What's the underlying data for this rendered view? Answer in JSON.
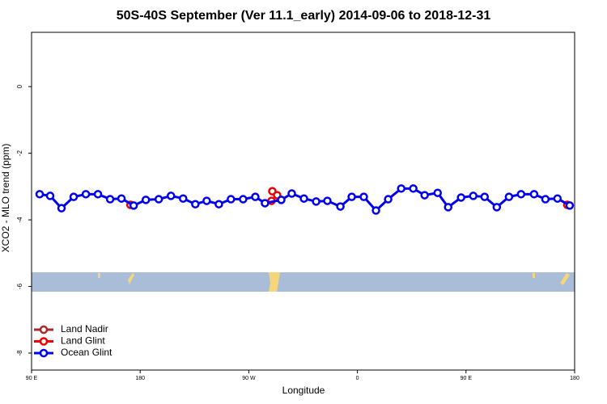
{
  "chart_data": {
    "type": "line",
    "title": "50S-40S September (Ver 11.1_early)   2014-09-06 to 2018-12-31",
    "xlabel": "Longitude",
    "ylabel": "XCO2 - MLO trend (ppm)",
    "xlim": [
      90,
      540
    ],
    "xticks": [
      {
        "value": 90,
        "label": "90 E"
      },
      180,
      {
        "value": 270,
        "label": "90 W"
      },
      {
        "value": 360,
        "label": "0"
      },
      {
        "value": 450,
        "label": "90 E"
      },
      {
        "value": 540,
        "label": "180"
      }
    ],
    "ylim": [
      -8.51,
      1.63
    ],
    "yticks": [
      -8,
      -6,
      -4,
      -2,
      0
    ],
    "legend": "bottom-left",
    "series": [
      {
        "name": "Land Nadir",
        "color": "#a52a2a",
        "x": [],
        "values": []
      },
      {
        "name": "Land Glint",
        "color": "#ee0000",
        "x": [
          171.9,
          null,
          289.5,
          293.5,
          288.8,
          null,
          533.9
        ],
        "values": [
          -3.55,
          null,
          -3.14,
          -3.26,
          -3.43,
          null,
          -3.55
        ]
      },
      {
        "name": "Ocean Glint",
        "color": "#0000ee",
        "x": [
          96.7,
          105.4,
          114.8,
          124.9,
          135.0,
          145.0,
          155.1,
          164.5,
          174.6,
          184.7,
          195.4,
          205.5,
          215.6,
          225.7,
          235.1,
          245.2,
          255.2,
          265.3,
          275.4,
          283.4,
          296.9,
          305.6,
          315.7,
          325.8,
          335.1,
          345.9,
          355.3,
          365.3,
          375.4,
          385.5,
          396.3,
          406.3,
          415.7,
          426.5,
          435.2,
          445.9,
          456.0,
          465.4,
          475.5,
          485.6,
          495.6,
          506.4,
          515.8,
          525.8,
          535.9
        ],
        "values": [
          -3.23,
          -3.28,
          -3.65,
          -3.31,
          -3.23,
          -3.23,
          -3.38,
          -3.36,
          -3.57,
          -3.4,
          -3.38,
          -3.28,
          -3.36,
          -3.53,
          -3.43,
          -3.53,
          -3.38,
          -3.38,
          -3.31,
          -3.5,
          -3.4,
          -3.21,
          -3.36,
          -3.45,
          -3.43,
          -3.6,
          -3.31,
          -3.31,
          -3.72,
          -3.38,
          -3.06,
          -3.06,
          -3.26,
          -3.19,
          -3.62,
          -3.33,
          -3.28,
          -3.31,
          -3.62,
          -3.31,
          -3.23,
          -3.23,
          -3.38,
          -3.36,
          -3.57
        ]
      }
    ]
  }
}
